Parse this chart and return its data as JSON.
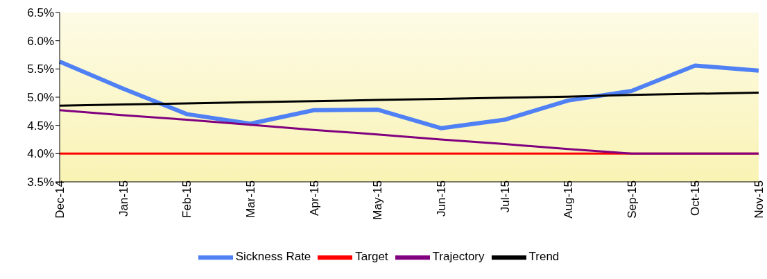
{
  "chart_data": {
    "type": "line",
    "categories": [
      "Dec-14",
      "Jan-15",
      "Feb-15",
      "Mar-15",
      "Apr-15",
      "May-15",
      "Jun-15",
      "Jul-15",
      "Aug-15",
      "Sep-15",
      "Oct-15",
      "Nov-15"
    ],
    "series": [
      {
        "name": "Sickness Rate",
        "color": "#4f81f5",
        "values": [
          5.63,
          5.15,
          4.7,
          4.53,
          4.77,
          4.78,
          4.45,
          4.6,
          4.94,
          5.11,
          5.56,
          5.47
        ]
      },
      {
        "name": "Target",
        "color": "#ff0000",
        "values": [
          4.0,
          4.0,
          4.0,
          4.0,
          4.0,
          4.0,
          4.0,
          4.0,
          4.0,
          4.0,
          4.0,
          4.0
        ]
      },
      {
        "name": "Trajectory",
        "color": "#800080",
        "values": [
          4.77,
          4.68,
          4.6,
          4.51,
          4.42,
          4.34,
          4.25,
          4.17,
          4.08,
          4.0,
          4.0,
          4.0
        ]
      },
      {
        "name": "Trend",
        "color": "#000000",
        "values": [
          4.85,
          4.87,
          4.89,
          4.91,
          4.93,
          4.95,
          4.97,
          4.99,
          5.01,
          5.04,
          5.06,
          5.08
        ]
      }
    ],
    "ylim": [
      3.5,
      6.5
    ],
    "yticks": [
      {
        "value": 3.5,
        "label": "3.5%"
      },
      {
        "value": 4.0,
        "label": "4.0%"
      },
      {
        "value": 4.5,
        "label": "4.5%"
      },
      {
        "value": 5.0,
        "label": "5.0%"
      },
      {
        "value": 5.5,
        "label": "5.5%"
      },
      {
        "value": 6.0,
        "label": "6.0%"
      },
      {
        "value": 6.5,
        "label": "6.5%"
      }
    ],
    "grid": false,
    "legend": "bottom",
    "marker": "none",
    "line_style": "solid"
  }
}
